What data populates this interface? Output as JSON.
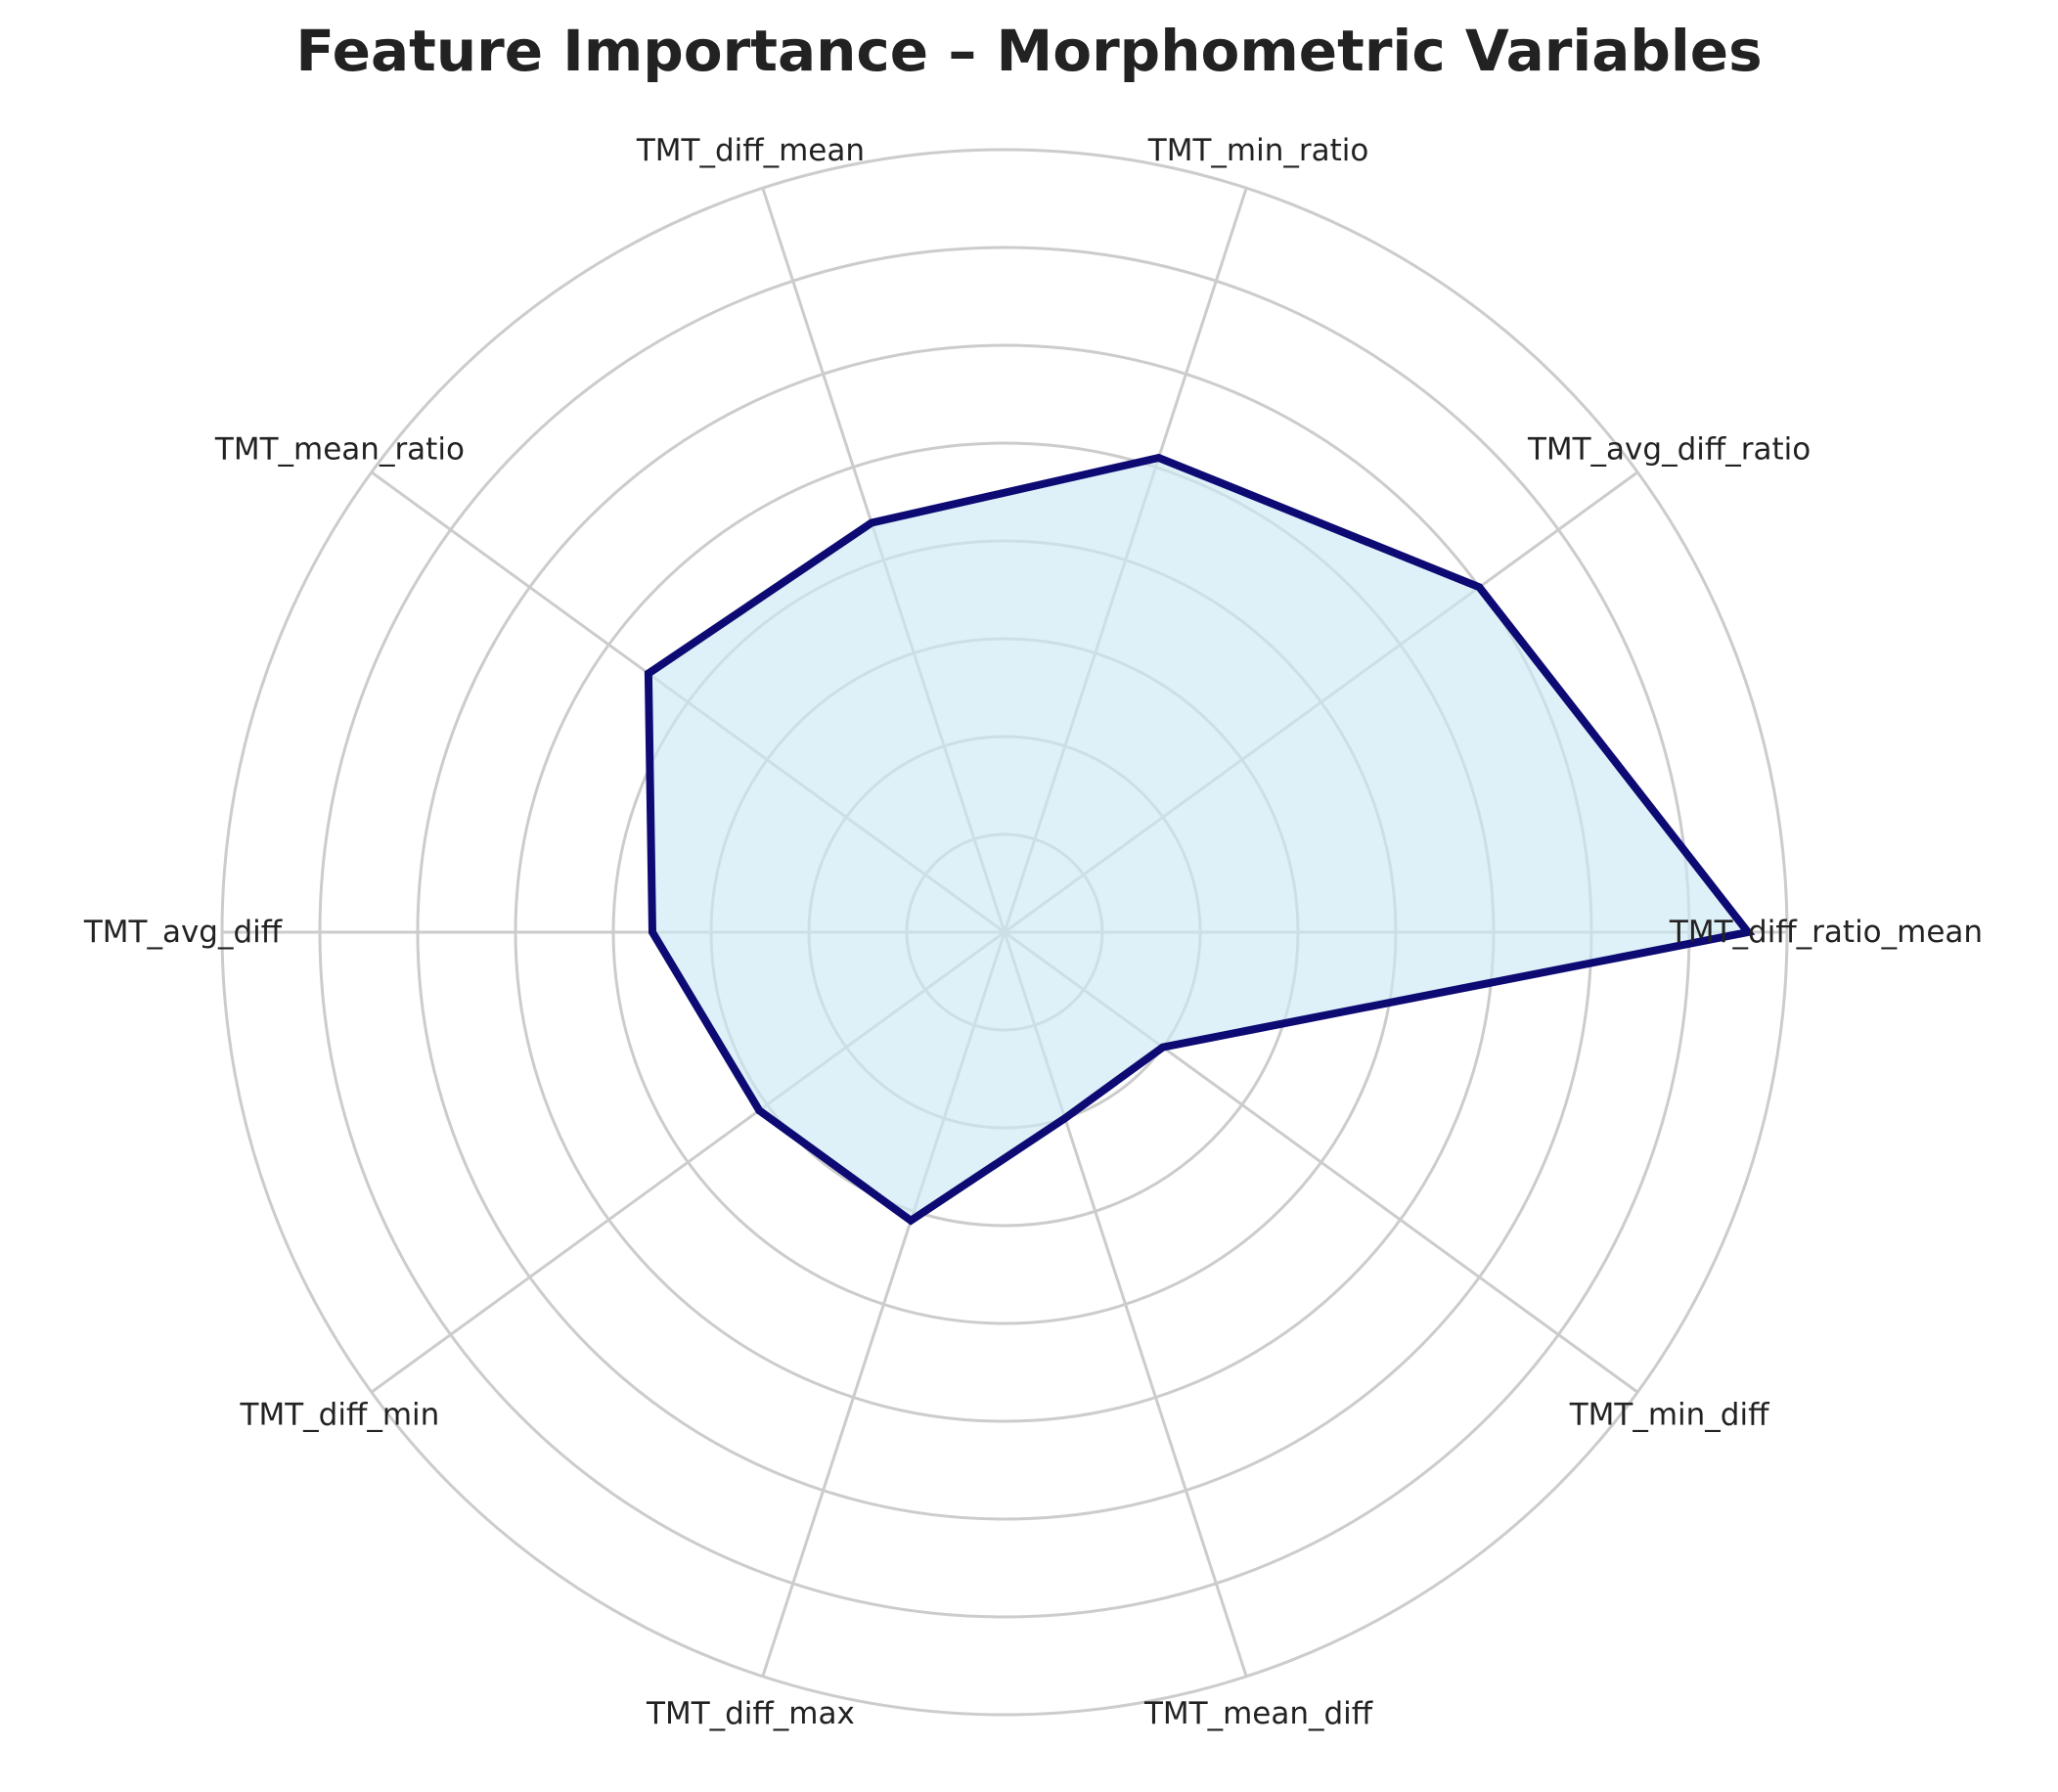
{
  "chart_data": {
    "type": "radar",
    "title": "Feature Importance – Morphometric Variables",
    "categories": [
      "TMT_diff_ratio_mean",
      "TMT_avg_diff_ratio",
      "TMT_min_ratio",
      "TMT_diff_mean",
      "TMT_mean_ratio",
      "TMT_avg_diff",
      "TMT_diff_min",
      "TMT_diff_max",
      "TMT_mean_diff",
      "TMT_min_diff"
    ],
    "values": [
      7.6,
      6.0,
      5.1,
      4.4,
      4.5,
      3.6,
      3.1,
      3.1,
      2.0,
      2.0
    ],
    "rlim": [
      0,
      8
    ],
    "rings": [
      1,
      2,
      3,
      4,
      5,
      6,
      7,
      8
    ],
    "grid": true,
    "colors": {
      "line": "#0d0a73",
      "fill": "#cce9f5",
      "grid": "#cccccc"
    }
  }
}
